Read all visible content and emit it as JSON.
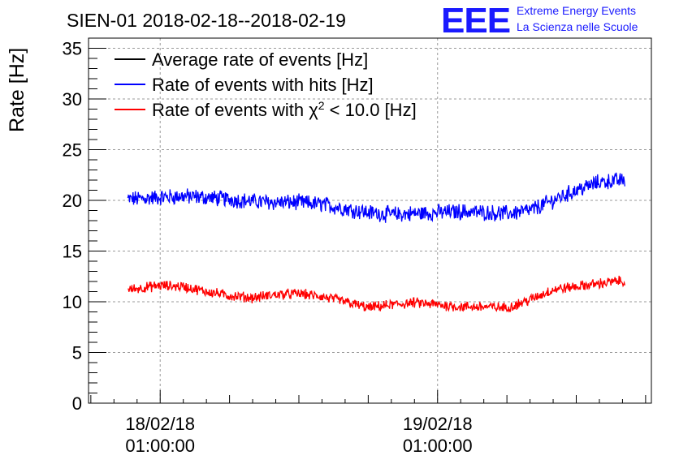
{
  "header": {
    "title": "SIEN-01 2018-02-18--2018-02-19",
    "logo_text": "EEE",
    "logo_line1": "Extreme Energy Events",
    "logo_line2": "La Scienza nelle Scuole",
    "logo_color": "#1a1aff"
  },
  "chart_data": {
    "type": "line",
    "title": "SIEN-01 2018-02-18--2018-02-19",
    "xlabel": "",
    "ylabel": "Rate [Hz]",
    "ylim": [
      0,
      36
    ],
    "y_ticks": [
      "0",
      "5",
      "10",
      "15",
      "20",
      "25",
      "30",
      "35"
    ],
    "x_ticks": [
      {
        "date": "18/02/18",
        "time": "01:00:00",
        "hours": 0
      },
      {
        "date": "19/02/18",
        "time": "01:00:00",
        "hours": 24
      }
    ],
    "xlim_hours": [
      -6.2,
      42.5
    ],
    "grid": true,
    "legend_position": "top-left",
    "legend": [
      {
        "label_main": "Average rate of events [Hz]",
        "label_sup": "",
        "label_tail": "",
        "color": "#000000"
      },
      {
        "label_main": "Rate of events with hits [Hz]",
        "label_sup": "",
        "label_tail": "",
        "color": "#0000ff"
      },
      {
        "label_main": "Rate of events with χ",
        "label_sup": "2",
        "label_tail": " < 10.0 [Hz]",
        "color": "#ff0000"
      }
    ],
    "series": [
      {
        "name": "Average rate of events [Hz]",
        "color": "#000000",
        "x_hours": [],
        "values": []
      },
      {
        "name": "Rate of events with hits [Hz]",
        "color": "#0000ff",
        "noise_amplitude": 0.7,
        "x_hours": [
          -2.8,
          0,
          2,
          4,
          6,
          8,
          10,
          12,
          14,
          16,
          18,
          20,
          22,
          24,
          26,
          28,
          30,
          32,
          34,
          36,
          38,
          40.2
        ],
        "values": [
          20.1,
          20.3,
          20.4,
          20.3,
          20.1,
          19.9,
          19.8,
          19.8,
          19.6,
          19.2,
          18.8,
          18.6,
          18.7,
          18.8,
          18.9,
          18.8,
          18.7,
          19.0,
          20.0,
          21.0,
          21.8,
          22.0
        ]
      },
      {
        "name": "Rate of events with χ2 < 10.0 [Hz]",
        "color": "#ff0000",
        "noise_amplitude": 0.45,
        "x_hours": [
          -2.8,
          0,
          2,
          4,
          6,
          8,
          10,
          12,
          14,
          16,
          18,
          20,
          22,
          24,
          26,
          28,
          30,
          32,
          34,
          36,
          38,
          40.2
        ],
        "values": [
          11.2,
          11.6,
          11.5,
          11.0,
          10.6,
          10.4,
          10.7,
          10.8,
          10.5,
          10.0,
          9.4,
          9.7,
          9.9,
          9.7,
          9.5,
          9.5,
          9.4,
          10.2,
          11.2,
          11.5,
          11.8,
          12.1
        ]
      }
    ]
  }
}
